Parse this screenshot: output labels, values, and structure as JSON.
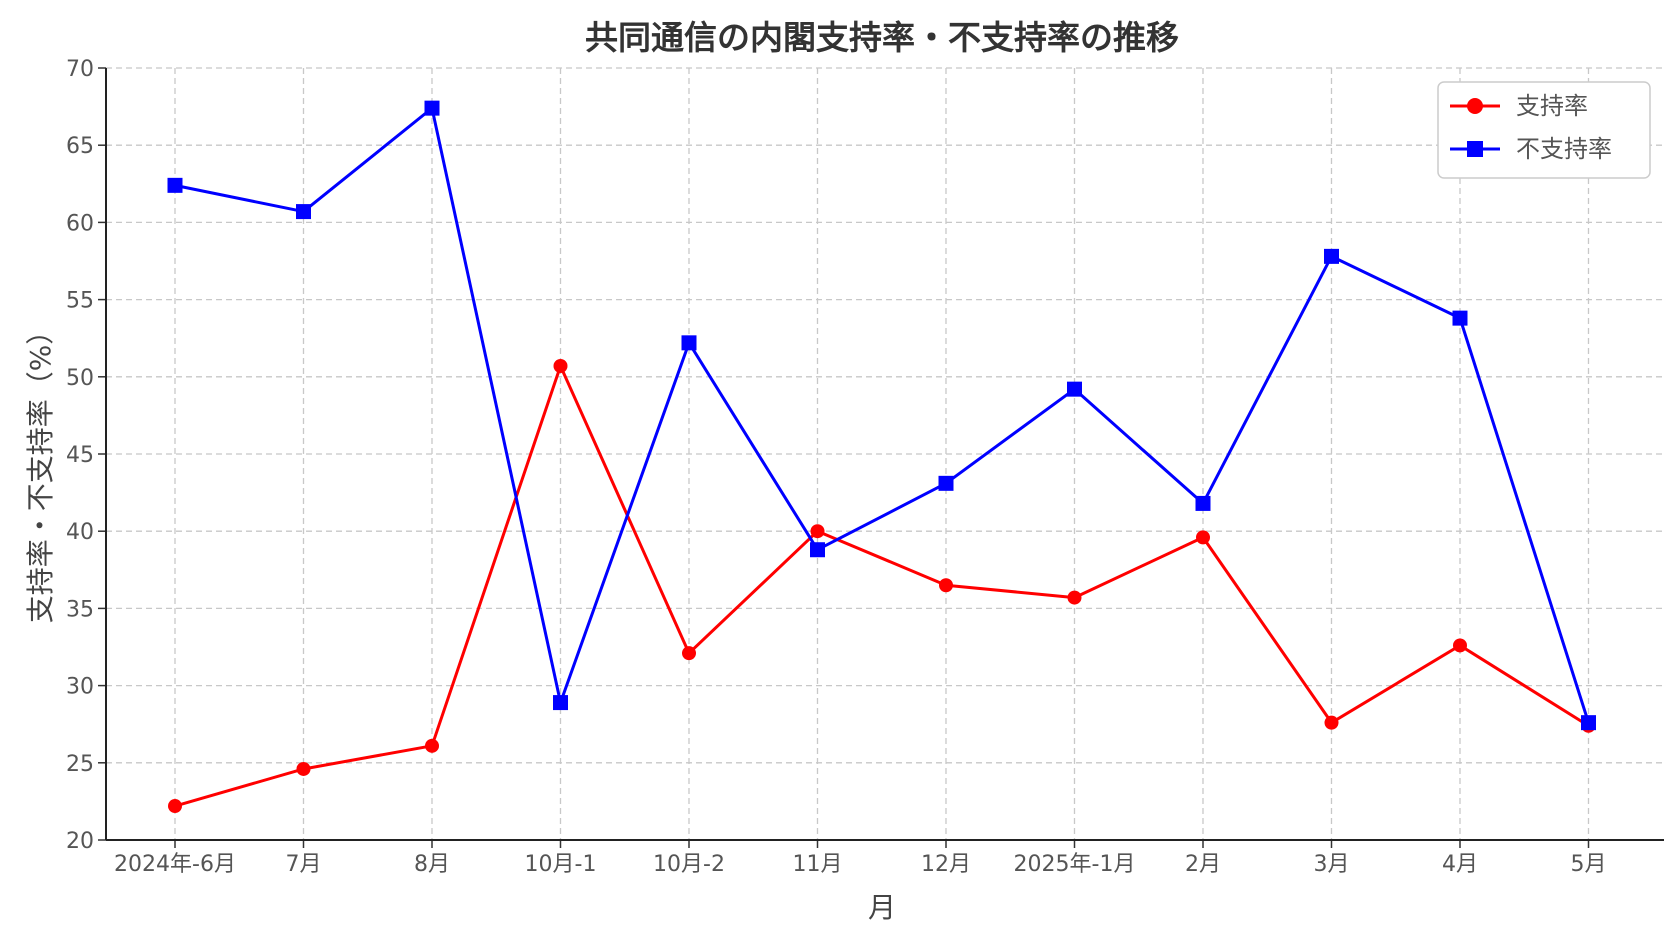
{
  "chart_data": {
    "type": "line",
    "title": "共同通信の内閣支持率・不支持率の推移",
    "xlabel": "月",
    "ylabel": "支持率・不支持率（%）",
    "categories": [
      "2024年-6月",
      "7月",
      "8月",
      "10月-1",
      "10月-2",
      "11月",
      "12月",
      "2025年-1月",
      "2月",
      "3月",
      "4月",
      "5月"
    ],
    "ylim": [
      20,
      70
    ],
    "yticks": [
      20,
      25,
      30,
      35,
      40,
      45,
      50,
      55,
      60,
      65,
      70
    ],
    "grid": true,
    "legend_position": "top-right",
    "series": [
      {
        "name": "支持率",
        "color": "#ff0000",
        "marker": "circle",
        "values": [
          22.2,
          24.6,
          26.1,
          50.7,
          32.1,
          40.0,
          36.5,
          35.7,
          39.6,
          27.6,
          32.6,
          27.4
        ]
      },
      {
        "name": "不支持率",
        "color": "#0000ff",
        "marker": "square",
        "values": [
          62.4,
          60.7,
          67.4,
          28.9,
          52.2,
          38.8,
          43.1,
          49.2,
          41.8,
          57.8,
          53.8,
          27.6
        ]
      }
    ]
  }
}
